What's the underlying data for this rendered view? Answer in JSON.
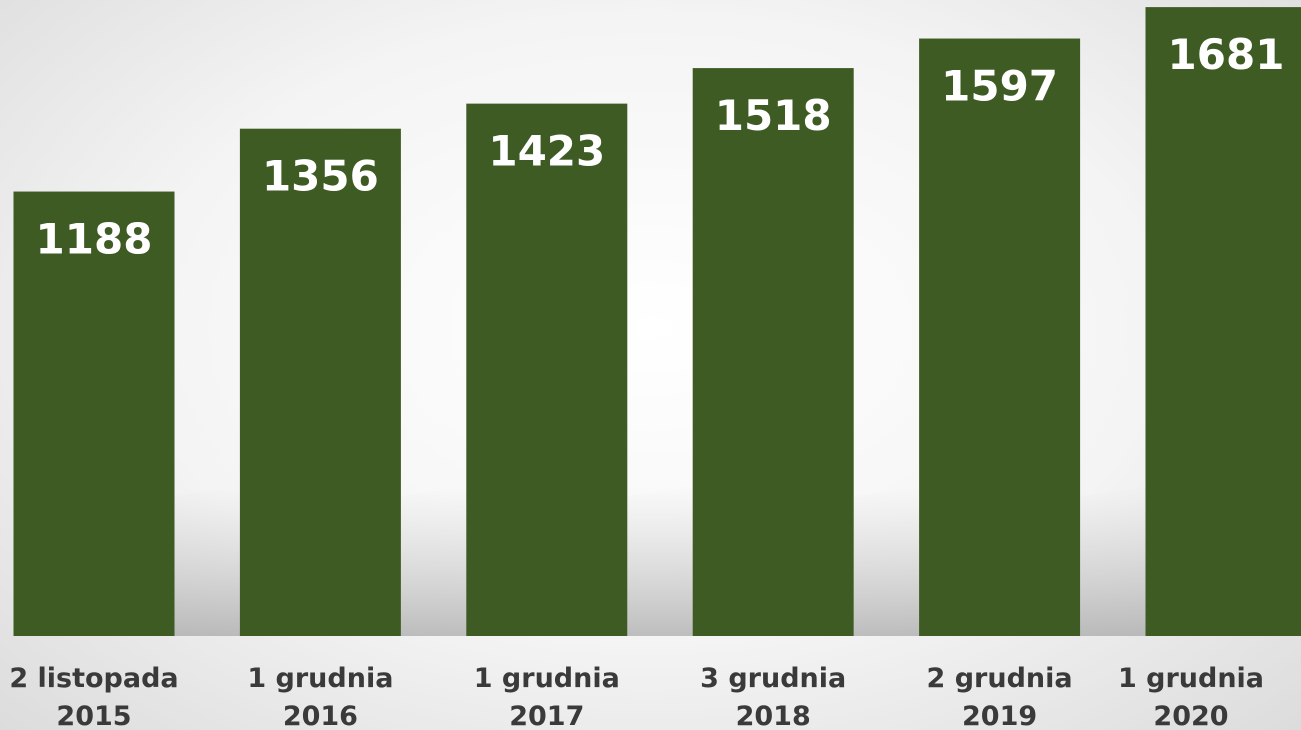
{
  "chart_data": {
    "type": "bar",
    "categories": [
      "2 listopada\n2015",
      "1 grudnia\n2016",
      "1 grudnia\n2017",
      "3 grudnia\n2018",
      "2 grudnia\n2019",
      "1 grudnia\n2020"
    ],
    "values": [
      1188,
      1356,
      1423,
      1518,
      1597,
      1681
    ],
    "color": "#3e5b24",
    "ylim": [
      0,
      1700
    ]
  }
}
